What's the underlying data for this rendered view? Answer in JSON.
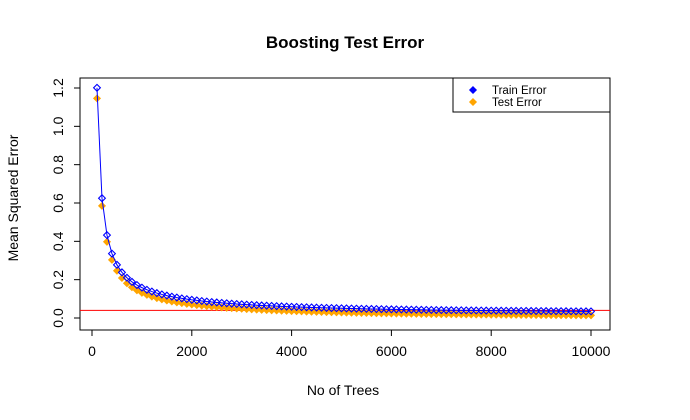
{
  "chart_data": {
    "type": "scatter",
    "title": "Boosting Test Error",
    "xlabel": "No of Trees",
    "ylabel": "Mean Squared Error",
    "xlim": [
      0,
      10000
    ],
    "ylim": [
      0.0,
      1.2
    ],
    "xticks": [
      "0",
      "2000",
      "4000",
      "6000",
      "8000",
      "10000"
    ],
    "xtick_values": [
      0,
      2000,
      4000,
      6000,
      8000,
      10000
    ],
    "yticks": [
      "0.0",
      "0.2",
      "0.4",
      "0.6",
      "0.8",
      "1.0",
      "1.2"
    ],
    "ytick_values": [
      0.0,
      0.2,
      0.4,
      0.6,
      0.8,
      1.0,
      1.2
    ],
    "grid": false,
    "legend_position": "top-right",
    "x_start": 100,
    "x_step": 100,
    "x_end": 10000,
    "series": [
      {
        "name": "Train Error",
        "color": "#0000ff",
        "marker": "diamond",
        "line": true,
        "curve": {
          "a": 115.0,
          "b": 0.03,
          "c": 0.0015,
          "exponent": 1.0
        }
      },
      {
        "name": "Test Error",
        "color": "#ffa500",
        "marker": "diamond",
        "line": false,
        "curve": {
          "a": 112.0,
          "b": 0.025,
          "c": -0.0125,
          "exponent": 1.0
        }
      }
    ],
    "hline": {
      "y": 0.04,
      "color": "#ff0000"
    }
  }
}
